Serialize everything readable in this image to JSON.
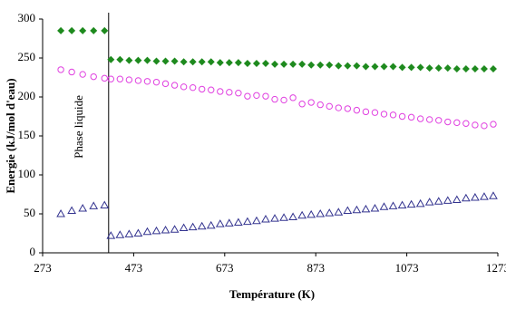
{
  "chart_data": {
    "type": "scatter",
    "x_label": "Température (K)",
    "y_label": "Energie (kJ/mol d'eau)",
    "xlim": [
      273,
      1273
    ],
    "xticks": [
      273,
      473,
      673,
      873,
      1073,
      1273
    ],
    "ylim": [
      0,
      300
    ],
    "yticks": [
      0,
      50,
      100,
      150,
      200,
      250,
      300
    ],
    "grid": false,
    "annotations": [
      {
        "text": "Phase liquide",
        "x": 418
      }
    ],
    "series": [
      {
        "color": "#1e8a1e",
        "marker": "diamond",
        "x": [
          313,
          337,
          361,
          385,
          409
        ],
        "values": [
          285,
          285,
          285,
          285,
          285
        ]
      },
      {
        "color": "#e040e0",
        "marker": "circle",
        "x": [
          313,
          337,
          361,
          385,
          409
        ],
        "values": [
          235,
          232,
          229,
          226,
          224
        ]
      },
      {
        "color": "#33338f",
        "marker": "triangle",
        "x": [
          313,
          337,
          361,
          385,
          409
        ],
        "values": [
          50,
          54,
          57,
          60,
          61
        ]
      },
      {
        "color": "#1e8a1e",
        "marker": "diamond",
        "x": [
          423,
          443,
          463,
          483,
          503,
          523,
          543,
          563,
          583,
          603,
          623,
          643,
          663,
          683,
          703,
          723,
          743,
          763,
          783,
          803,
          823,
          843,
          863,
          883,
          903,
          923,
          943,
          963,
          983,
          1003,
          1023,
          1043,
          1063,
          1083,
          1103,
          1123,
          1143,
          1163,
          1183,
          1203,
          1223,
          1243,
          1263
        ],
        "values": [
          248,
          248,
          247,
          247,
          247,
          246,
          246,
          246,
          245,
          245,
          245,
          245,
          244,
          244,
          244,
          243,
          243,
          243,
          242,
          242,
          242,
          242,
          241,
          241,
          241,
          240,
          240,
          240,
          239,
          239,
          239,
          239,
          238,
          238,
          238,
          237,
          237,
          237,
          236,
          236,
          236,
          236,
          236
        ]
      },
      {
        "color": "#e040e0",
        "marker": "circle",
        "x": [
          423,
          443,
          463,
          483,
          503,
          523,
          543,
          563,
          583,
          603,
          623,
          643,
          663,
          683,
          703,
          723,
          743,
          763,
          783,
          803,
          823,
          843,
          863,
          883,
          903,
          923,
          943,
          963,
          983,
          1003,
          1023,
          1043,
          1063,
          1083,
          1103,
          1123,
          1143,
          1163,
          1183,
          1203,
          1223,
          1243,
          1263
        ],
        "values": [
          223,
          223,
          222,
          221,
          220,
          219,
          217,
          215,
          213,
          212,
          210,
          209,
          207,
          206,
          205,
          201,
          202,
          201,
          197,
          196,
          199,
          191,
          193,
          190,
          188,
          186,
          185,
          183,
          181,
          180,
          178,
          177,
          175,
          174,
          172,
          171,
          170,
          168,
          167,
          166,
          164,
          163,
          165
        ]
      },
      {
        "color": "#33338f",
        "marker": "triangle",
        "x": [
          423,
          443,
          463,
          483,
          503,
          523,
          543,
          563,
          583,
          603,
          623,
          643,
          663,
          683,
          703,
          723,
          743,
          763,
          783,
          803,
          823,
          843,
          863,
          883,
          903,
          923,
          943,
          963,
          983,
          1003,
          1023,
          1043,
          1063,
          1083,
          1103,
          1123,
          1143,
          1163,
          1183,
          1203,
          1223,
          1243,
          1263
        ],
        "values": [
          22,
          23,
          24,
          25,
          27,
          28,
          29,
          30,
          32,
          33,
          34,
          35,
          37,
          38,
          39,
          40,
          41,
          43,
          44,
          45,
          46,
          48,
          49,
          50,
          51,
          52,
          54,
          55,
          56,
          57,
          59,
          60,
          61,
          62,
          63,
          65,
          66,
          67,
          68,
          70,
          71,
          72,
          73
        ]
      }
    ]
  }
}
